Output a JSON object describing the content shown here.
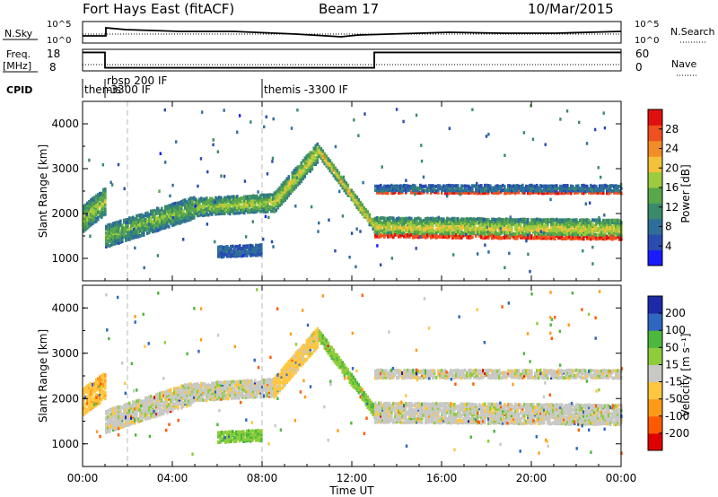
{
  "header": {
    "title": "Fort Hays East (fitACF)",
    "beam": "Beam 17",
    "date": "10/Mar/2015"
  },
  "summary": {
    "nsky_label": "N.Sky",
    "nsky_ticks": [
      "10^5",
      "10^0"
    ],
    "nsearch_label": "N.Search",
    "freq_label": "Freq.",
    "freq_unit": "[MHz]",
    "freq_ticks": [
      "18",
      "8"
    ],
    "nave_ticks": [
      "60",
      "0"
    ],
    "nave_label": "Nave",
    "cpid_label": "CPID",
    "cpid_segments": [
      {
        "label": "themis",
        "start_h": 0.0
      },
      {
        "label": "rbsp 200 IF",
        "label2": "-3300 IF",
        "start_h": 1.0
      },
      {
        "label": "themis -3300 IF",
        "start_h": 8.0
      }
    ],
    "freq_mhz": [
      {
        "start_h": 0.0,
        "end_h": 1.0,
        "value": 18
      },
      {
        "start_h": 1.0,
        "end_h": 13.0,
        "value": 8
      },
      {
        "start_h": 13.0,
        "end_h": 24.0,
        "value": 18
      }
    ]
  },
  "x_axis": {
    "label": "Time UT",
    "ticks": [
      "00:00",
      "04:00",
      "08:00",
      "12:00",
      "16:00",
      "20:00",
      "00:00"
    ],
    "range_h": [
      0,
      24
    ]
  },
  "colors": {
    "power": [
      "#1a1aff",
      "#2a4bb0",
      "#2e6e9a",
      "#3a8a6c",
      "#5aa64a",
      "#9ccb3e",
      "#f2c23a",
      "#f28c28",
      "#ee5020",
      "#e01010"
    ],
    "velocity": [
      "#e00000",
      "#ff5a00",
      "#ff9a18",
      "#ffc640",
      "#c8c8c4",
      "#8ecc3c",
      "#4cb83c",
      "#2f66c0",
      "#1c2aa8"
    ]
  },
  "chart_data": [
    {
      "type": "heatmap",
      "title": "",
      "xlabel": "",
      "ylabel": "Slant Range [km]",
      "xlim": [
        0,
        24
      ],
      "ylim": [
        500,
        4500
      ],
      "yticks": [
        "1000",
        "2000",
        "3000",
        "4000"
      ],
      "colorbar": {
        "label": "Power [dB]",
        "ticks": [
          "4",
          "8",
          "12",
          "16",
          "20",
          "24",
          "28"
        ],
        "range": [
          0,
          32
        ]
      },
      "bands": [
        {
          "name": "",
          "t_start": 0.0,
          "t_end": 1.0,
          "r_center_start": 1900,
          "r_center_end": 2300,
          "width_km": 600,
          "value": 18
        },
        {
          "name": "",
          "t_start": 1.0,
          "t_end": 5.0,
          "r_center_start": 1500,
          "r_center_end": 2150,
          "width_km": 500,
          "value": 16
        },
        {
          "name": "",
          "t_start": 5.0,
          "t_end": 8.5,
          "r_center_start": 2150,
          "r_center_end": 2250,
          "width_km": 400,
          "value": 18
        },
        {
          "name": "",
          "t_start": 8.5,
          "t_end": 10.5,
          "r_center_start": 2250,
          "r_center_end": 3400,
          "width_km": 450,
          "value": 20
        },
        {
          "name": "",
          "t_start": 10.5,
          "t_end": 13.0,
          "r_center_start": 3400,
          "r_center_end": 1700,
          "width_km": 250,
          "value": 22
        },
        {
          "name": "",
          "t_start": 13.0,
          "t_end": 24.0,
          "r_center_start": 1700,
          "r_center_end": 1650,
          "width_km": 450,
          "value": 20
        },
        {
          "name": "",
          "t_start": 6.0,
          "t_end": 8.0,
          "r_center_start": 1150,
          "r_center_end": 1200,
          "width_km": 250,
          "value": 8
        },
        {
          "name": "",
          "t_start": 13.0,
          "t_end": 24.0,
          "r_center_start": 2550,
          "r_center_end": 2550,
          "width_km": 200,
          "value": 9
        }
      ]
    },
    {
      "type": "heatmap",
      "title": "",
      "xlabel": "Time UT",
      "ylabel": "Slant Range [km]",
      "xlim": [
        0,
        24
      ],
      "ylim": [
        500,
        4500
      ],
      "yticks": [
        "1000",
        "2000",
        "3000",
        "4000"
      ],
      "colorbar": {
        "label": "Velocity [m s⁻¹]",
        "ticks": [
          "200",
          "100",
          "50",
          "15",
          "-15",
          "-50",
          "-100",
          "-200"
        ],
        "range": [
          -250,
          250
        ]
      },
      "bands": [
        {
          "name": "",
          "t_start": 0.0,
          "t_end": 1.0,
          "r_center_start": 1950,
          "r_center_end": 2300,
          "width_km": 600,
          "value": -40
        },
        {
          "name": "",
          "t_start": 1.0,
          "t_end": 5.0,
          "r_center_start": 1500,
          "r_center_end": 2150,
          "width_km": 500,
          "value": 0
        },
        {
          "name": "",
          "t_start": 5.0,
          "t_end": 8.5,
          "r_center_start": 2150,
          "r_center_end": 2250,
          "width_km": 400,
          "value": 0
        },
        {
          "name": "",
          "t_start": 8.5,
          "t_end": 10.5,
          "r_center_start": 2250,
          "r_center_end": 3400,
          "width_km": 450,
          "value": -30
        },
        {
          "name": "",
          "t_start": 10.5,
          "t_end": 13.0,
          "r_center_start": 3400,
          "r_center_end": 1700,
          "width_km": 250,
          "value": 40
        },
        {
          "name": "",
          "t_start": 13.0,
          "t_end": 24.0,
          "r_center_start": 1700,
          "r_center_end": 1650,
          "width_km": 450,
          "value": 0
        },
        {
          "name": "",
          "t_start": 6.0,
          "t_end": 8.0,
          "r_center_start": 1150,
          "r_center_end": 1200,
          "width_km": 250,
          "value": 45
        },
        {
          "name": "",
          "t_start": 13.0,
          "t_end": 24.0,
          "r_center_start": 2550,
          "r_center_end": 2550,
          "width_km": 200,
          "value": 0
        }
      ]
    }
  ]
}
